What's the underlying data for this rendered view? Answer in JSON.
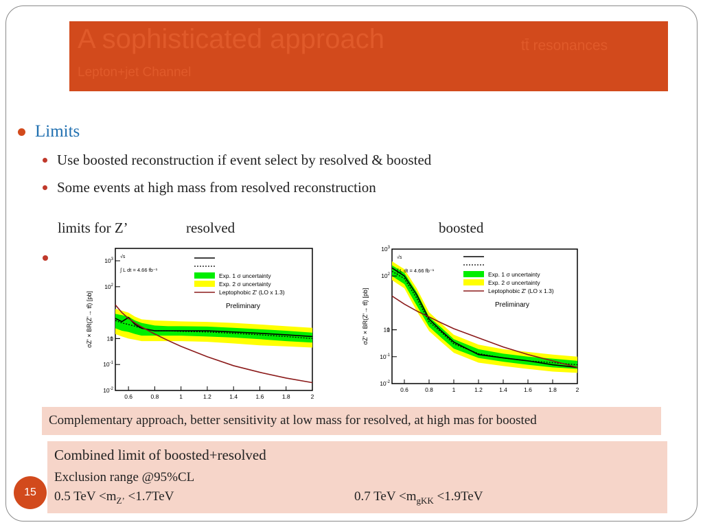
{
  "slide": {
    "title": "A sophisticated approach",
    "title_right": "tt̄ resonances",
    "subtitle": "Lepton+jet Channel",
    "bullet_main": "Limits",
    "bullets": [
      "Use boosted reconstruction if event select by resolved & boosted",
      "Some events at high mass from resolved reconstruction"
    ],
    "limits_label": "limits for Z’",
    "resolved_label": "resolved",
    "boosted_label": "boosted",
    "box1_text": "Complementary approach, better sensitivity at low mass for resolved, at high mas for boosted",
    "box2_line1": "Combined limit of boosted+resolved",
    "box2_line2": "Exclusion range @95%CL",
    "range_z": {
      "pre": "0.5 TeV <m",
      "sub": "Z’",
      "post": " <1.7TeV"
    },
    "range_gkk": {
      "pre": "0.7 TeV <m",
      "sub": "gKK",
      "post": " <1.9TeV"
    },
    "page_number": "15"
  },
  "colors": {
    "accent": "#d24a1c",
    "band1": "#00ee00",
    "band2": "#ffff00",
    "theory": "#8b1a1a",
    "pink_box": "#f6d5c9"
  },
  "chart_data": [
    {
      "type": "line",
      "name": "resolved",
      "ylabel": "σZ' × BR(Z'→ tt̄) [pb]",
      "log_y": true,
      "xlim": [
        0.5,
        2.0
      ],
      "ylim": [
        0.01,
        3000
      ],
      "x_ticks": [
        "0.6",
        "0.8",
        "1",
        "1.2",
        "1.4",
        "1.6",
        "1.8",
        "2"
      ],
      "y_ticks": [
        "10^-2",
        "10^-1",
        "1",
        "10",
        "10^2",
        "10^3"
      ],
      "legend": [
        "Exp. 1 σ uncertainty",
        "Exp. 2 σ uncertainty",
        "Leptophobic Z' (LO x 1.3)"
      ],
      "annotations": [
        "√s",
        "∫ L dt = 4.66 fb⁻¹",
        "Preliminary"
      ],
      "x": [
        0.5,
        0.55,
        0.6,
        0.65,
        0.7,
        0.8,
        0.9,
        1.0,
        1.2,
        1.4,
        1.6,
        1.8,
        2.0
      ],
      "series": [
        {
          "values": [
            6.0,
            4.5,
            6.5,
            3.5,
            2.5,
            2.0,
            2.0,
            2.0,
            2.0,
            1.8,
            1.6,
            1.4,
            1.2
          ]
        },
        {
          "values": [
            5.0,
            4.0,
            3.5,
            3.0,
            2.5,
            2.0,
            2.0,
            1.9,
            1.8,
            1.6,
            1.4,
            1.2,
            1.0
          ]
        },
        {
          "values": [
            20,
            10,
            6,
            4,
            2.8,
            1.5,
            0.85,
            0.5,
            0.2,
            0.09,
            0.05,
            0.03,
            0.02
          ]
        }
      ],
      "band1": {
        "low": [
          2.5,
          2.0,
          1.8,
          1.5,
          1.3,
          1.3,
          1.3,
          1.3,
          1.2,
          1.1,
          0.95,
          0.8,
          0.7
        ],
        "high": [
          9,
          8,
          7,
          5,
          4,
          3.2,
          3.0,
          3.0,
          2.9,
          2.6,
          2.3,
          2.0,
          1.7
        ]
      },
      "band2": {
        "low": [
          1.5,
          1.2,
          1.0,
          0.9,
          0.8,
          0.8,
          0.8,
          0.8,
          0.75,
          0.65,
          0.55,
          0.5,
          0.45
        ],
        "high": [
          14,
          12,
          10,
          7,
          5.5,
          5.0,
          4.8,
          4.6,
          4.4,
          4.0,
          3.5,
          3.0,
          2.6
        ]
      }
    },
    {
      "type": "line",
      "name": "boosted",
      "ylabel": "σZ' × BR(Z'→ tt̄) [pb]",
      "log_y": true,
      "xlim": [
        0.5,
        2.0
      ],
      "ylim": [
        0.01,
        1000
      ],
      "x_ticks": [
        "0.6",
        "0.8",
        "1",
        "1.2",
        "1.4",
        "1.6",
        "1.8",
        "2"
      ],
      "y_ticks": [
        "10^-2",
        "10^-1",
        "1",
        "10",
        "10^2",
        "10^3"
      ],
      "legend": [
        "Exp. 1 σ uncertainty",
        "Exp. 2 σ uncertainty",
        "Leptophobic Z' (LO x 1.3)"
      ],
      "annotations": [
        "√s",
        "∫ L dt = 4.66 fb⁻¹",
        "Preliminary"
      ],
      "x": [
        0.5,
        0.6,
        0.7,
        0.8,
        0.9,
        1.0,
        1.2,
        1.4,
        1.6,
        1.8,
        2.0
      ],
      "series": [
        {
          "values": [
            200,
            100,
            20,
            2.5,
            0.9,
            0.35,
            0.12,
            0.09,
            0.07,
            0.05,
            0.04
          ]
        },
        {
          "values": [
            150,
            80,
            15,
            2.0,
            0.8,
            0.3,
            0.13,
            0.09,
            0.07,
            0.06,
            0.05
          ]
        },
        {
          "values": [
            18,
            9,
            5,
            3,
            1.8,
            1.1,
            0.5,
            0.23,
            0.12,
            0.07,
            0.04
          ]
        }
      ],
      "band1": {
        "low": [
          100,
          50,
          8,
          1.3,
          0.5,
          0.2,
          0.09,
          0.065,
          0.05,
          0.04,
          0.035
        ],
        "high": [
          250,
          130,
          25,
          3.0,
          1.2,
          0.45,
          0.19,
          0.13,
          0.1,
          0.085,
          0.07
        ]
      },
      "band2": {
        "low": [
          70,
          35,
          5,
          0.9,
          0.35,
          0.14,
          0.06,
          0.045,
          0.035,
          0.028,
          0.025
        ],
        "high": [
          350,
          180,
          35,
          4.5,
          1.7,
          0.65,
          0.28,
          0.19,
          0.15,
          0.12,
          0.1
        ]
      }
    }
  ]
}
